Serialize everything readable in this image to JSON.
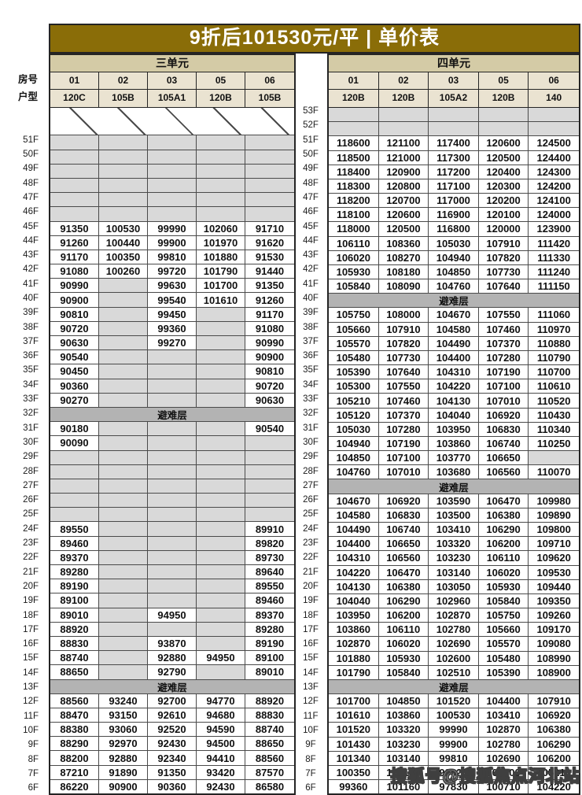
{
  "title": "9折后101530元/平 | 单价表",
  "watermark": "搜狐号@搜狐焦点河北站",
  "refuge_label": "避难层",
  "row_labels": {
    "room": "房号",
    "type": "户型"
  },
  "colors": {
    "title_bg": "#8a6d08",
    "unit_band_bg": "#d4cba6",
    "header_band_bg": "#eae3d1",
    "empty_cell_bg": "#d9d9d9",
    "refuge_bg": "#b3b3b3"
  },
  "tables": {
    "left": {
      "unit": "三单元",
      "rooms": [
        "01",
        "02",
        "03",
        "05",
        "06"
      ],
      "types": [
        "120C",
        "105B",
        "105A1",
        "120B",
        "105B"
      ],
      "rows": [
        {
          "h": 2
        },
        {
          "f": "51F",
          "c": [
            "",
            "",
            "",
            "",
            ""
          ]
        },
        {
          "f": "50F",
          "c": [
            "",
            "",
            "",
            "",
            ""
          ]
        },
        {
          "f": "49F",
          "c": [
            "",
            "",
            "",
            "",
            ""
          ]
        },
        {
          "f": "48F",
          "c": [
            "",
            "",
            "",
            "",
            ""
          ]
        },
        {
          "f": "47F",
          "c": [
            "",
            "",
            "",
            "",
            ""
          ]
        },
        {
          "f": "46F",
          "c": [
            "",
            "",
            "",
            "",
            ""
          ]
        },
        {
          "f": "45F",
          "c": [
            "91350",
            "100530",
            "99990",
            "102060",
            "91710"
          ]
        },
        {
          "f": "44F",
          "c": [
            "91260",
            "100440",
            "99900",
            "101970",
            "91620"
          ]
        },
        {
          "f": "43F",
          "c": [
            "91170",
            "100350",
            "99810",
            "101880",
            "91530"
          ]
        },
        {
          "f": "42F",
          "c": [
            "91080",
            "100260",
            "99720",
            "101790",
            "91440"
          ]
        },
        {
          "f": "41F",
          "c": [
            "90990",
            "",
            "99630",
            "101700",
            "91350"
          ]
        },
        {
          "f": "40F",
          "c": [
            "90900",
            "",
            "99540",
            "101610",
            "91260"
          ]
        },
        {
          "f": "39F",
          "c": [
            "90810",
            "",
            "99450",
            "",
            "91170"
          ]
        },
        {
          "f": "38F",
          "c": [
            "90720",
            "",
            "99360",
            "",
            "91080"
          ]
        },
        {
          "f": "37F",
          "c": [
            "90630",
            "",
            "99270",
            "",
            "90990"
          ]
        },
        {
          "f": "36F",
          "c": [
            "90540",
            "",
            "",
            "",
            "90900"
          ]
        },
        {
          "f": "35F",
          "c": [
            "90450",
            "",
            "",
            "",
            "90810"
          ]
        },
        {
          "f": "34F",
          "c": [
            "90360",
            "",
            "",
            "",
            "90720"
          ]
        },
        {
          "f": "33F",
          "c": [
            "90270",
            "",
            "",
            "",
            "90630"
          ]
        },
        {
          "f": "32F",
          "r": 1
        },
        {
          "f": "31F",
          "c": [
            "90180",
            "",
            "",
            "",
            "90540"
          ]
        },
        {
          "f": "30F",
          "c": [
            "90090",
            "",
            "",
            "",
            ""
          ]
        },
        {
          "f": "29F",
          "c": [
            "",
            "",
            "",
            "",
            ""
          ]
        },
        {
          "f": "28F",
          "c": [
            "",
            "",
            "",
            "",
            ""
          ]
        },
        {
          "f": "27F",
          "c": [
            "",
            "",
            "",
            "",
            ""
          ]
        },
        {
          "f": "26F",
          "c": [
            "",
            "",
            "",
            "",
            ""
          ]
        },
        {
          "f": "25F",
          "c": [
            "",
            "",
            "",
            "",
            ""
          ]
        },
        {
          "f": "24F",
          "c": [
            "89550",
            "",
            "",
            "",
            "89910"
          ]
        },
        {
          "f": "23F",
          "c": [
            "89460",
            "",
            "",
            "",
            "89820"
          ]
        },
        {
          "f": "22F",
          "c": [
            "89370",
            "",
            "",
            "",
            "89730"
          ]
        },
        {
          "f": "21F",
          "c": [
            "89280",
            "",
            "",
            "",
            "89640"
          ]
        },
        {
          "f": "20F",
          "c": [
            "89190",
            "",
            "",
            "",
            "89550"
          ]
        },
        {
          "f": "19F",
          "c": [
            "89100",
            "",
            "",
            "",
            "89460"
          ]
        },
        {
          "f": "18F",
          "c": [
            "89010",
            "",
            "94950",
            "",
            "89370"
          ]
        },
        {
          "f": "17F",
          "c": [
            "88920",
            "",
            "",
            "",
            "89280"
          ]
        },
        {
          "f": "16F",
          "c": [
            "88830",
            "",
            "93870",
            "",
            "89190"
          ]
        },
        {
          "f": "15F",
          "c": [
            "88740",
            "",
            "92880",
            "94950",
            "89100"
          ]
        },
        {
          "f": "14F",
          "c": [
            "88650",
            "",
            "92790",
            "",
            "89010"
          ]
        },
        {
          "f": "13F",
          "r": 1
        },
        {
          "f": "12F",
          "c": [
            "88560",
            "93240",
            "92700",
            "94770",
            "88920"
          ]
        },
        {
          "f": "11F",
          "c": [
            "88470",
            "93150",
            "92610",
            "94680",
            "88830"
          ]
        },
        {
          "f": "10F",
          "c": [
            "88380",
            "93060",
            "92520",
            "94590",
            "88740"
          ]
        },
        {
          "f": "9F",
          "c": [
            "88290",
            "92970",
            "92430",
            "94500",
            "88650"
          ]
        },
        {
          "f": "8F",
          "c": [
            "88200",
            "92880",
            "92340",
            "94410",
            "88560"
          ]
        },
        {
          "f": "7F",
          "c": [
            "87210",
            "91890",
            "91350",
            "93420",
            "87570"
          ]
        },
        {
          "f": "6F",
          "c": [
            "86220",
            "90900",
            "90360",
            "92430",
            "86580"
          ]
        }
      ]
    },
    "right": {
      "unit": "四单元",
      "rooms": [
        "01",
        "02",
        "03",
        "05",
        "06"
      ],
      "types": [
        "120B",
        "120B",
        "105A2",
        "120B",
        "140"
      ],
      "rows": [
        {
          "f": "53F",
          "c": [
            "",
            "",
            "",
            "",
            ""
          ]
        },
        {
          "f": "52F",
          "c": [
            "",
            "",
            "",
            "",
            ""
          ]
        },
        {
          "f": "51F",
          "c": [
            "118600",
            "121100",
            "117400",
            "120600",
            "124500"
          ]
        },
        {
          "f": "50F",
          "c": [
            "118500",
            "121000",
            "117300",
            "120500",
            "124400"
          ]
        },
        {
          "f": "49F",
          "c": [
            "118400",
            "120900",
            "117200",
            "120400",
            "124300"
          ]
        },
        {
          "f": "48F",
          "c": [
            "118300",
            "120800",
            "117100",
            "120300",
            "124200"
          ]
        },
        {
          "f": "47F",
          "c": [
            "118200",
            "120700",
            "117000",
            "120200",
            "124100"
          ]
        },
        {
          "f": "46F",
          "c": [
            "118100",
            "120600",
            "116900",
            "120100",
            "124000"
          ]
        },
        {
          "f": "45F",
          "c": [
            "118000",
            "120500",
            "116800",
            "120000",
            "123900"
          ]
        },
        {
          "f": "44F",
          "c": [
            "106110",
            "108360",
            "105030",
            "107910",
            "111420"
          ]
        },
        {
          "f": "43F",
          "c": [
            "106020",
            "108270",
            "104940",
            "107820",
            "111330"
          ]
        },
        {
          "f": "42F",
          "c": [
            "105930",
            "108180",
            "104850",
            "107730",
            "111240"
          ]
        },
        {
          "f": "41F",
          "c": [
            "105840",
            "108090",
            "104760",
            "107640",
            "111150"
          ]
        },
        {
          "f": "40F",
          "r": 1
        },
        {
          "f": "39F",
          "c": [
            "105750",
            "108000",
            "104670",
            "107550",
            "111060"
          ]
        },
        {
          "f": "38F",
          "c": [
            "105660",
            "107910",
            "104580",
            "107460",
            "110970"
          ]
        },
        {
          "f": "37F",
          "c": [
            "105570",
            "107820",
            "104490",
            "107370",
            "110880"
          ]
        },
        {
          "f": "36F",
          "c": [
            "105480",
            "107730",
            "104400",
            "107280",
            "110790"
          ]
        },
        {
          "f": "35F",
          "c": [
            "105390",
            "107640",
            "104310",
            "107190",
            "110700"
          ]
        },
        {
          "f": "34F",
          "c": [
            "105300",
            "107550",
            "104220",
            "107100",
            "110610"
          ]
        },
        {
          "f": "33F",
          "c": [
            "105210",
            "107460",
            "104130",
            "107010",
            "110520"
          ]
        },
        {
          "f": "32F",
          "c": [
            "105120",
            "107370",
            "104040",
            "106920",
            "110430"
          ]
        },
        {
          "f": "31F",
          "c": [
            "105030",
            "107280",
            "103950",
            "106830",
            "110340"
          ]
        },
        {
          "f": "30F",
          "c": [
            "104940",
            "107190",
            "103860",
            "106740",
            "110250"
          ]
        },
        {
          "f": "29F",
          "c": [
            "104850",
            "107100",
            "103770",
            "106650",
            ""
          ]
        },
        {
          "f": "28F",
          "c": [
            "104760",
            "107010",
            "103680",
            "106560",
            "110070"
          ]
        },
        {
          "f": "27F",
          "r": 1
        },
        {
          "f": "26F",
          "c": [
            "104670",
            "106920",
            "103590",
            "106470",
            "109980"
          ]
        },
        {
          "f": "25F",
          "c": [
            "104580",
            "106830",
            "103500",
            "106380",
            "109890"
          ]
        },
        {
          "f": "24F",
          "c": [
            "104490",
            "106740",
            "103410",
            "106290",
            "109800"
          ]
        },
        {
          "f": "23F",
          "c": [
            "104400",
            "106650",
            "103320",
            "106200",
            "109710"
          ]
        },
        {
          "f": "22F",
          "c": [
            "104310",
            "106560",
            "103230",
            "106110",
            "109620"
          ]
        },
        {
          "f": "21F",
          "c": [
            "104220",
            "106470",
            "103140",
            "106020",
            "109530"
          ]
        },
        {
          "f": "20F",
          "c": [
            "104130",
            "106380",
            "103050",
            "105930",
            "109440"
          ]
        },
        {
          "f": "19F",
          "c": [
            "104040",
            "106290",
            "102960",
            "105840",
            "109350"
          ]
        },
        {
          "f": "18F",
          "c": [
            "103950",
            "106200",
            "102870",
            "105750",
            "109260"
          ]
        },
        {
          "f": "17F",
          "c": [
            "103860",
            "106110",
            "102780",
            "105660",
            "109170"
          ]
        },
        {
          "f": "16F",
          "c": [
            "102870",
            "106020",
            "102690",
            "105570",
            "109080"
          ]
        },
        {
          "f": "15F",
          "c": [
            "101880",
            "105930",
            "102600",
            "105480",
            "108990"
          ]
        },
        {
          "f": "14F",
          "c": [
            "101790",
            "105840",
            "102510",
            "105390",
            "108900"
          ]
        },
        {
          "f": "13F",
          "r": 1
        },
        {
          "f": "12F",
          "c": [
            "101700",
            "104850",
            "101520",
            "104400",
            "107910"
          ]
        },
        {
          "f": "11F",
          "c": [
            "101610",
            "103860",
            "100530",
            "103410",
            "106920"
          ]
        },
        {
          "f": "10F",
          "c": [
            "101520",
            "103320",
            "99990",
            "102870",
            "106380"
          ]
        },
        {
          "f": "9F",
          "c": [
            "101430",
            "103230",
            "99900",
            "102780",
            "106290"
          ]
        },
        {
          "f": "8F",
          "c": [
            "101340",
            "103140",
            "99810",
            "102690",
            "106200"
          ]
        },
        {
          "f": "7F",
          "c": [
            "100350",
            "102150",
            "98820",
            "101700",
            "105210"
          ]
        },
        {
          "f": "6F",
          "c": [
            "99360",
            "101160",
            "97830",
            "100710",
            "104220"
          ]
        }
      ]
    }
  }
}
